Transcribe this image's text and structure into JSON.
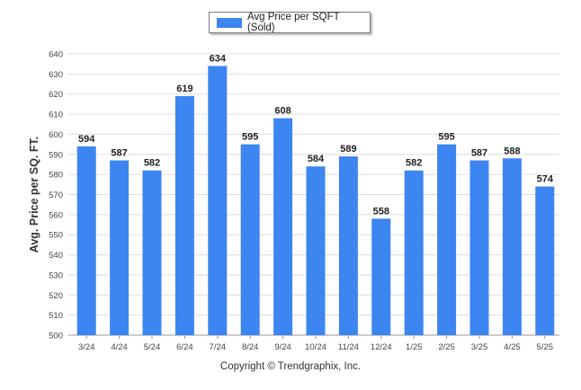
{
  "legend": {
    "label": "Avg Price per SQFT (Sold)"
  },
  "footer": {
    "copyright": "Copyright © Trendgraphix, Inc."
  },
  "colors": {
    "bar": "#3d85f0",
    "grid": "#dddddd",
    "axis": "#555555"
  },
  "chart_data": {
    "type": "bar",
    "ylabel": "Avg. Price per SQ. FT.",
    "ylim": [
      500,
      640
    ],
    "ytick_step": 10,
    "grid": true,
    "legend_position": "top-center",
    "categories": [
      "3/24",
      "4/24",
      "5/24",
      "6/24",
      "7/24",
      "8/24",
      "9/24",
      "10/24",
      "11/24",
      "12/24",
      "1/25",
      "2/25",
      "3/25",
      "4/25",
      "5/25"
    ],
    "series": [
      {
        "name": "Avg Price per SQFT (Sold)",
        "values": [
          594,
          587,
          582,
          619,
          634,
          595,
          608,
          584,
          589,
          558,
          582,
          595,
          587,
          588,
          574
        ]
      }
    ]
  }
}
